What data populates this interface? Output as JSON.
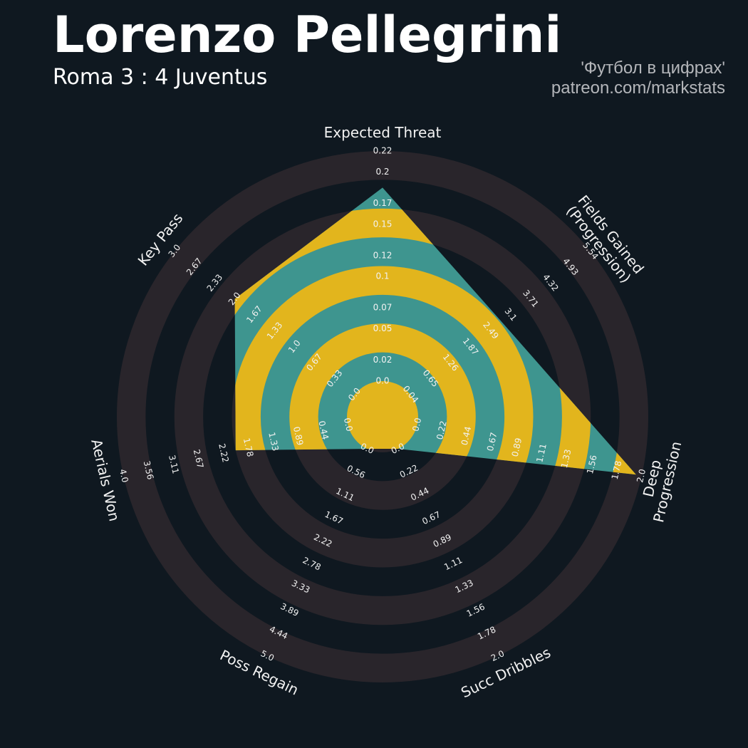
{
  "chart_data": {
    "type": "radar",
    "title": "Lorenzo Pellegrini",
    "subtitle": "Roma 3 : 4 Juventus",
    "credits": [
      "'Футбол в цифрах'",
      "patreon.com/markstats"
    ],
    "categories": [
      "Expected Threat",
      "Fields Gained\n(Progression)",
      "Deep Progression",
      "Succ Dribbles",
      "Poss Regain",
      "Aerials Won",
      "Key Pass"
    ],
    "values": [
      0.185,
      2.83,
      1.95,
      0,
      0,
      2.0,
      2.0
    ],
    "axes": [
      {
        "lim": [
          0,
          0.22
        ],
        "ticks": [
          {
            "value": 0,
            "label": "0.0"
          },
          0.02,
          0.05,
          0.07,
          0.1,
          0.12,
          0.15,
          0.17,
          0.2,
          0.22
        ]
      },
      {
        "lim": [
          0.04,
          5.54
        ],
        "ticks": [
          0.04,
          0.65,
          1.26,
          1.87,
          2.49,
          3.1,
          3.71,
          4.32,
          4.93,
          5.54
        ]
      },
      {
        "lim": [
          0,
          2
        ],
        "ticks": [
          {
            "value": 0,
            "label": "0.0"
          },
          0.22,
          0.44,
          0.67,
          0.89,
          1.11,
          1.33,
          1.56,
          1.78,
          {
            "value": 2,
            "label": "2.0"
          }
        ]
      },
      {
        "lim": [
          0,
          2
        ],
        "ticks": [
          {
            "value": 0,
            "label": "0.0"
          },
          0.22,
          0.44,
          0.67,
          0.89,
          1.11,
          1.33,
          1.56,
          1.78,
          {
            "value": 2,
            "label": "2.0"
          }
        ]
      },
      {
        "lim": [
          0,
          5
        ],
        "ticks": [
          {
            "value": 0,
            "label": "0.0"
          },
          0.56,
          1.11,
          1.67,
          2.22,
          2.78,
          3.33,
          3.89,
          4.44,
          {
            "value": 5,
            "label": "5.0"
          }
        ]
      },
      {
        "lim": [
          0,
          4
        ],
        "ticks": [
          {
            "value": 0,
            "label": "0.0"
          },
          0.44,
          0.89,
          1.33,
          1.78,
          2.22,
          2.67,
          3.11,
          3.56,
          {
            "value": 4,
            "label": "4.0"
          }
        ]
      },
      {
        "lim": [
          0,
          3
        ],
        "ticks": [
          {
            "value": 0,
            "label": "0.0"
          },
          0.33,
          0.67,
          {
            "value": 1,
            "label": "1.0"
          },
          1.33,
          1.67,
          {
            "value": 2,
            "label": "2.0"
          },
          2.33,
          2.67,
          {
            "value": 3,
            "label": "3.0"
          }
        ]
      }
    ],
    "color": "#3e958f",
    "ring_color": "#29252b",
    "highlight_color": "#e2b51d"
  }
}
